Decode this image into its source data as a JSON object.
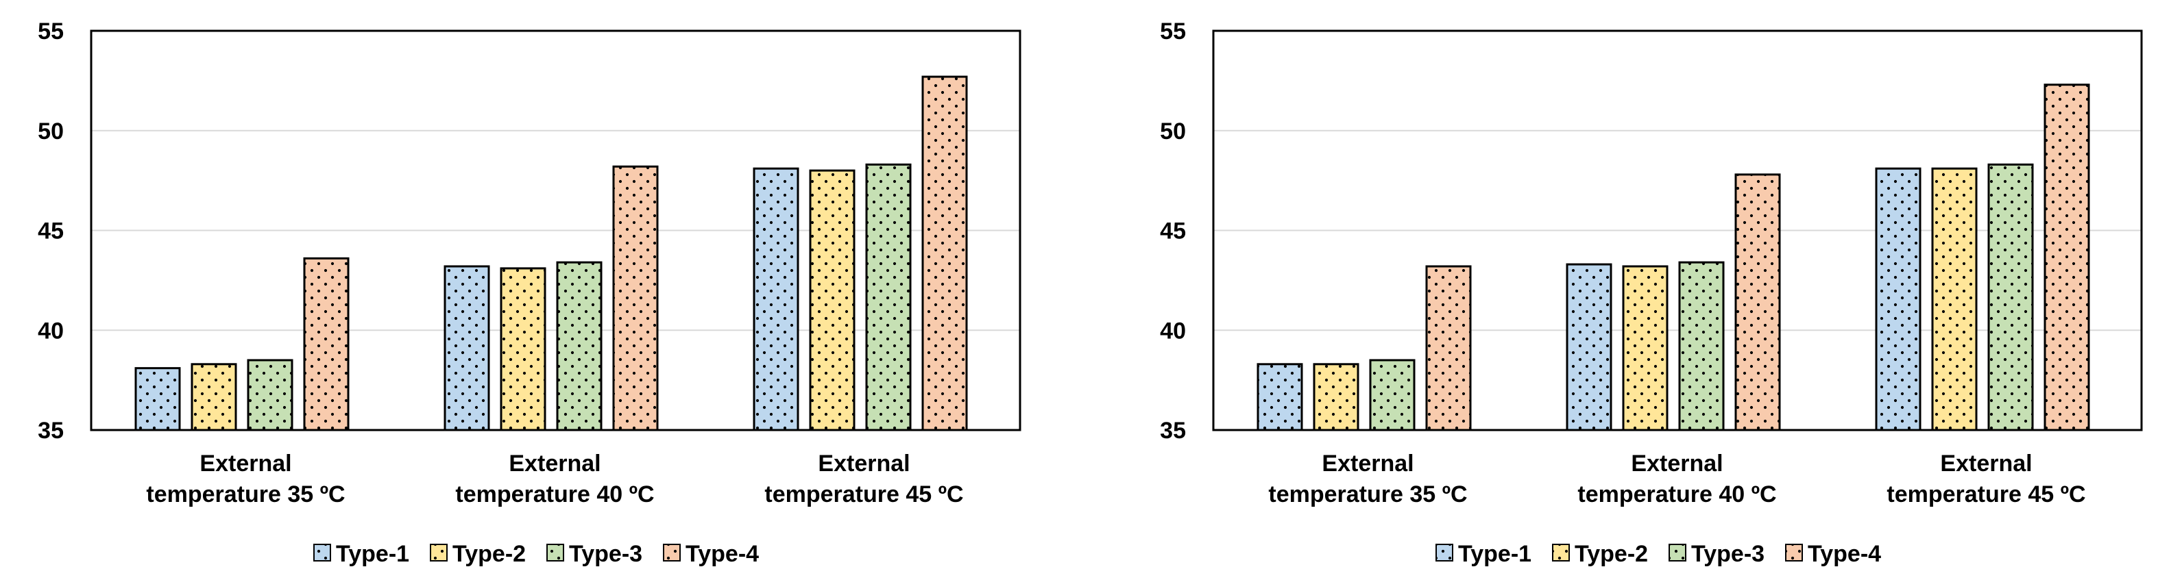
{
  "chart_data": [
    {
      "type": "bar",
      "title": "",
      "xlabel": "",
      "ylabel": "",
      "ylim": [
        35,
        55
      ],
      "yticks": [
        "35",
        "40",
        "45",
        "50",
        "55"
      ],
      "grid": true,
      "legend_position": "bottom",
      "categories": [
        [
          "External",
          "temperature 35 ºC"
        ],
        [
          "External",
          "temperature 40 ºC"
        ],
        [
          "External",
          "temperature 45 ºC"
        ]
      ],
      "series": [
        {
          "name": "Type-1",
          "color": "#bdd7ee",
          "values": [
            38.1,
            43.2,
            48.1
          ]
        },
        {
          "name": "Type-2",
          "color": "#ffe699",
          "values": [
            38.3,
            43.1,
            48.0
          ]
        },
        {
          "name": "Type-3",
          "color": "#c6e0b4",
          "values": [
            38.5,
            43.4,
            48.3
          ]
        },
        {
          "name": "Type-4",
          "color": "#f8cbad",
          "values": [
            43.6,
            48.2,
            52.7
          ]
        }
      ]
    },
    {
      "type": "bar",
      "title": "",
      "xlabel": "",
      "ylabel": "",
      "ylim": [
        35,
        55
      ],
      "yticks": [
        "35",
        "40",
        "45",
        "50",
        "55"
      ],
      "grid": true,
      "legend_position": "bottom",
      "categories": [
        [
          "External",
          "temperature 35 ºC"
        ],
        [
          "External",
          "temperature 40 ºC"
        ],
        [
          "External",
          "temperature 45 ºC"
        ]
      ],
      "series": [
        {
          "name": "Type-1",
          "color": "#bdd7ee",
          "values": [
            38.3,
            43.3,
            48.1
          ]
        },
        {
          "name": "Type-2",
          "color": "#ffe699",
          "values": [
            38.3,
            43.2,
            48.1
          ]
        },
        {
          "name": "Type-3",
          "color": "#c6e0b4",
          "values": [
            38.5,
            43.4,
            48.3
          ]
        },
        {
          "name": "Type-4",
          "color": "#f8cbad",
          "values": [
            43.2,
            47.8,
            52.3
          ]
        }
      ]
    }
  ]
}
